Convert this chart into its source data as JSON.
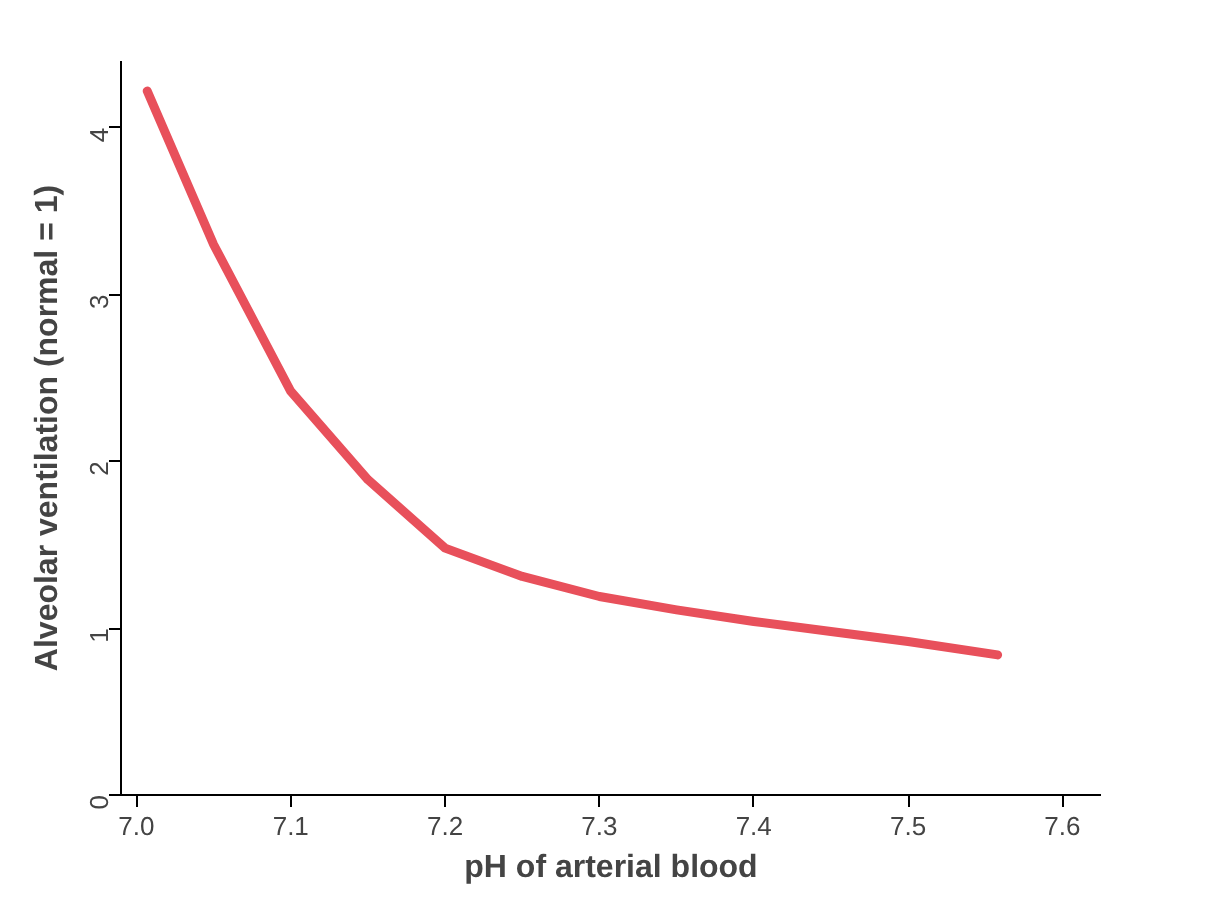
{
  "chart_data": {
    "type": "line",
    "xlabel": "pH of arterial blood",
    "ylabel": "Alveolar ventilation (normal = 1)",
    "x": [
      7.007,
      7.05,
      7.1,
      7.15,
      7.2,
      7.25,
      7.3,
      7.35,
      7.4,
      7.45,
      7.5,
      7.558
    ],
    "series": [
      {
        "color": "#e8505b",
        "values": [
          4.22,
          3.3,
          2.42,
          1.89,
          1.48,
          1.31,
          1.19,
          1.11,
          1.04,
          0.98,
          0.92,
          0.84
        ]
      }
    ],
    "xlim": [
      6.99,
      7.625
    ],
    "ylim": [
      0,
      4.4
    ],
    "xticks": [
      {
        "value": 7.0,
        "label": "7.0"
      },
      7.1,
      7.2,
      7.3,
      7.4,
      7.5,
      7.6
    ],
    "yticks": [
      0,
      1,
      2,
      3,
      4
    ],
    "grid": false,
    "marker": "none",
    "line_style": "solid"
  }
}
